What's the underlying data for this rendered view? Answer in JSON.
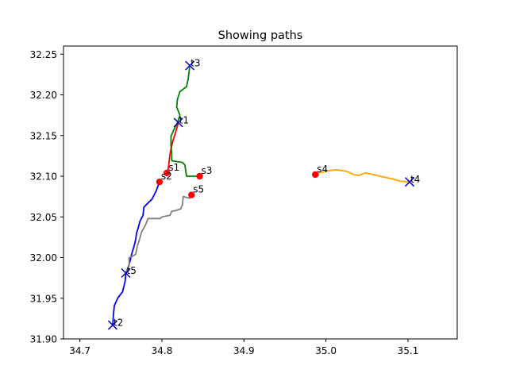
{
  "chart_data": {
    "type": "line",
    "title": "Showing paths",
    "xlabel": "",
    "ylabel": "",
    "xlim": [
      34.68,
      35.16
    ],
    "ylim": [
      31.9,
      32.26
    ],
    "xticks": [
      34.7,
      34.8,
      34.9,
      35.0,
      35.1
    ],
    "xtick_labels": [
      "34.7",
      "34.8",
      "34.9",
      "35.0",
      "35.1"
    ],
    "yticks": [
      31.9,
      31.95,
      32.0,
      32.05,
      32.1,
      32.15,
      32.2,
      32.25
    ],
    "ytick_labels": [
      "31.90",
      "31.95",
      "32.00",
      "32.05",
      "32.10",
      "32.15",
      "32.20",
      "32.25"
    ],
    "grid": false,
    "series": [
      {
        "color": "#ff0000",
        "points": [
          [
            34.807,
            32.104
          ],
          [
            34.808,
            32.112
          ],
          [
            34.81,
            32.128
          ],
          [
            34.813,
            32.142
          ],
          [
            34.817,
            32.155
          ],
          [
            34.82,
            32.166
          ]
        ]
      },
      {
        "color": "#0000ff",
        "points": [
          [
            34.797,
            32.093
          ],
          [
            34.793,
            32.082
          ],
          [
            34.788,
            32.072
          ],
          [
            34.782,
            32.066
          ],
          [
            34.778,
            32.062
          ],
          [
            34.777,
            32.052
          ],
          [
            34.773,
            32.044
          ],
          [
            34.771,
            32.036
          ],
          [
            34.769,
            32.03
          ],
          [
            34.768,
            32.022
          ],
          [
            34.766,
            32.014
          ],
          [
            34.763,
            32.004
          ],
          [
            34.761,
            31.995
          ],
          [
            34.758,
            31.985
          ],
          [
            34.756,
            31.98
          ],
          [
            34.755,
            31.97
          ],
          [
            34.752,
            31.958
          ],
          [
            34.746,
            31.95
          ],
          [
            34.742,
            31.941
          ],
          [
            34.741,
            31.931
          ],
          [
            34.74,
            31.917
          ]
        ]
      },
      {
        "color": "#008000",
        "points": [
          [
            34.845,
            32.1
          ],
          [
            34.83,
            32.1
          ],
          [
            34.828,
            32.114
          ],
          [
            34.825,
            32.117
          ],
          [
            34.818,
            32.118
          ],
          [
            34.812,
            32.119
          ],
          [
            34.812,
            32.127
          ],
          [
            34.811,
            32.138
          ],
          [
            34.811,
            32.149
          ],
          [
            34.815,
            32.158
          ],
          [
            34.819,
            32.166
          ],
          [
            34.822,
            32.175
          ],
          [
            34.818,
            32.185
          ],
          [
            34.819,
            32.195
          ],
          [
            34.822,
            32.204
          ],
          [
            34.83,
            32.21
          ],
          [
            34.832,
            32.22
          ],
          [
            34.834,
            32.236
          ]
        ]
      },
      {
        "color": "#ffa500",
        "points": [
          [
            34.988,
            32.103
          ],
          [
            35.0,
            32.106
          ],
          [
            35.012,
            32.108
          ],
          [
            35.025,
            32.106
          ],
          [
            35.034,
            32.102
          ],
          [
            35.04,
            32.101
          ],
          [
            35.048,
            32.104
          ],
          [
            35.058,
            32.102
          ],
          [
            35.07,
            32.099
          ],
          [
            35.08,
            32.097
          ],
          [
            35.09,
            32.094
          ],
          [
            35.1,
            32.093
          ]
        ]
      },
      {
        "color": "#808080",
        "points": [
          [
            34.836,
            32.077
          ],
          [
            34.834,
            32.073
          ],
          [
            34.826,
            32.075
          ],
          [
            34.825,
            32.065
          ],
          [
            34.823,
            32.06
          ],
          [
            34.818,
            32.058
          ],
          [
            34.812,
            32.057
          ],
          [
            34.81,
            32.052
          ],
          [
            34.8,
            32.05
          ],
          [
            34.798,
            32.048
          ],
          [
            34.783,
            32.048
          ],
          [
            34.78,
            32.04
          ],
          [
            34.775,
            32.031
          ],
          [
            34.772,
            32.02
          ],
          [
            34.77,
            32.014
          ],
          [
            34.768,
            32.004
          ],
          [
            34.763,
            32.001
          ],
          [
            34.76,
            32.0
          ],
          [
            34.76,
            31.99
          ],
          [
            34.756,
            31.982
          ]
        ]
      }
    ],
    "starts": [
      {
        "label": "s1",
        "x": 34.806,
        "y": 32.104
      },
      {
        "label": "s2",
        "x": 34.797,
        "y": 32.093
      },
      {
        "label": "s3",
        "x": 34.846,
        "y": 32.1
      },
      {
        "label": "s4",
        "x": 34.987,
        "y": 32.102
      },
      {
        "label": "s5",
        "x": 34.836,
        "y": 32.077
      }
    ],
    "targets": [
      {
        "label": "t1",
        "x": 34.82,
        "y": 32.166
      },
      {
        "label": "t2",
        "x": 34.74,
        "y": 31.917
      },
      {
        "label": "t3",
        "x": 34.834,
        "y": 32.236
      },
      {
        "label": "t4",
        "x": 35.102,
        "y": 32.093
      },
      {
        "label": "t5",
        "x": 34.756,
        "y": 31.981
      }
    ],
    "start_color": "#ff0000",
    "target_color": "#0000cc"
  }
}
